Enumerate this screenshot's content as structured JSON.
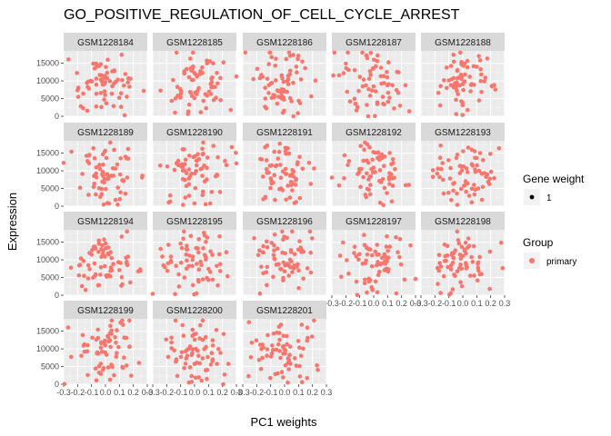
{
  "chart_data": {
    "type": "scatter",
    "title": "GO_POSITIVE_REGULATION_OF_CELL_CYCLE_ARREST",
    "xlabel": "PC1 weights",
    "ylabel": "Expression",
    "xlim": [
      -0.3,
      0.3
    ],
    "ylim": [
      0,
      18500
    ],
    "x_ticks": [
      -0.3,
      -0.2,
      -0.1,
      0.0,
      0.1,
      0.2,
      0.3
    ],
    "x_tick_labels": [
      "-0.3",
      "-0.2",
      "-0.1",
      "0.0",
      "0.1",
      "0.2",
      "0.3"
    ],
    "y_ticks": [
      0,
      5000,
      10000,
      15000
    ],
    "y_tick_labels": [
      "0",
      "5000",
      "10000",
      "15000"
    ],
    "grid": true,
    "point_color": "#F8766D",
    "panel_background": "#EBEBEB",
    "strip_background": "#D9D9D9",
    "panels": [
      "GSM1228184",
      "GSM1228185",
      "GSM1228186",
      "GSM1228187",
      "GSM1228188",
      "GSM1228189",
      "GSM1228190",
      "GSM1228191",
      "GSM1228192",
      "GSM1228193",
      "GSM1228194",
      "GSM1228195",
      "GSM1228196",
      "GSM1228197",
      "GSM1228198",
      "GSM1228199",
      "GSM1228200",
      "GSM1228201"
    ],
    "legend": {
      "placement": "right",
      "size_title": "Gene weight",
      "size_label": "1",
      "group_title": "Group",
      "group_label": "primary"
    }
  }
}
